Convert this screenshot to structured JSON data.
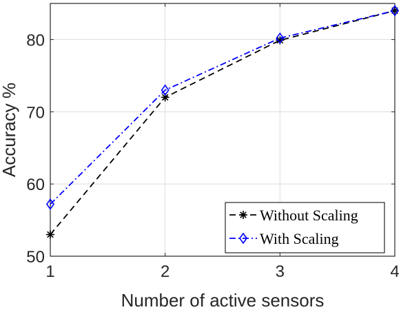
{
  "chart_data": {
    "type": "line",
    "title": "",
    "xlabel": "Number of active sensors",
    "ylabel": "Accuracy %",
    "x": [
      1,
      2,
      3,
      4
    ],
    "xlim": [
      1,
      4
    ],
    "ylim": [
      50,
      85
    ],
    "xticks": [
      "1",
      "2",
      "3",
      "4"
    ],
    "yticks": [
      "50",
      "60",
      "70",
      "80"
    ],
    "grid": true,
    "legend_position": "bottom-right",
    "series": [
      {
        "name": "Without Scaling",
        "values": [
          53.0,
          72.0,
          79.9,
          84.0
        ],
        "color": "#000000",
        "line_style": "dashed",
        "marker": "asterisk"
      },
      {
        "name": "With Scaling",
        "values": [
          57.2,
          73.0,
          80.2,
          84.0
        ],
        "color": "#0000ff",
        "line_style": "dash-dot",
        "marker": "diamond"
      }
    ]
  }
}
